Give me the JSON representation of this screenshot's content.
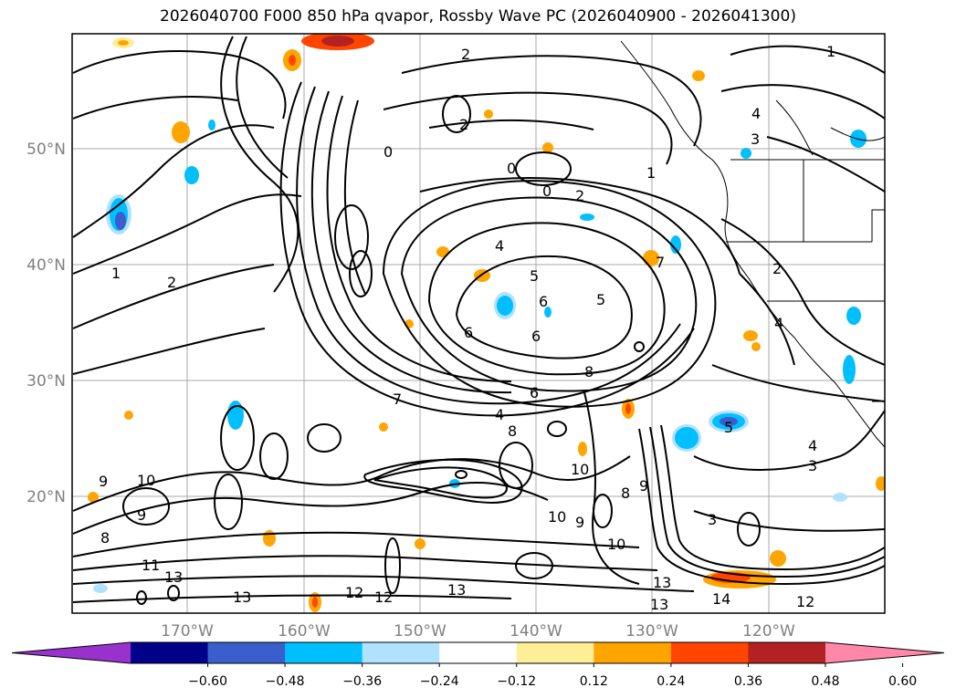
{
  "title": "2026040700 F000 850 hPa qvapor, Rossby Wave PC (2026040900 - 2026041300)",
  "map": {
    "lon_labels": [
      "170°W",
      "160°W",
      "150°W",
      "140°W",
      "130°W",
      "120°W"
    ],
    "lat_labels": [
      "50°N",
      "40°N",
      "30°N",
      "20°N"
    ],
    "contour_labels": [
      "2",
      "1",
      "2",
      "4",
      "3",
      "0",
      "0",
      "2",
      "1",
      "0",
      "2",
      "1",
      "4",
      "5",
      "6",
      "6",
      "7",
      "4",
      "5",
      "6",
      "8",
      "7",
      "6",
      "8",
      "10",
      "10",
      "9",
      "8",
      "9",
      "10",
      "11",
      "13",
      "13",
      "12",
      "12",
      "13",
      "13",
      "13",
      "12",
      "14",
      "3",
      "3",
      "4",
      "5",
      "4",
      "2",
      "8",
      "9",
      "9",
      "10"
    ]
  },
  "colorbar": {
    "ticks": [
      "−0.60",
      "−0.48",
      "−0.36",
      "−0.24",
      "−0.12",
      "0.12",
      "0.24",
      "0.36",
      "0.48",
      "0.60"
    ],
    "colors": [
      "#9932cc",
      "#00008b",
      "#3a5fcd",
      "#00bfff",
      "#b0e2ff",
      "#ffffff",
      "#fdee98",
      "#ffa500",
      "#ff4500",
      "#b22222",
      "#ff88aa"
    ]
  }
}
